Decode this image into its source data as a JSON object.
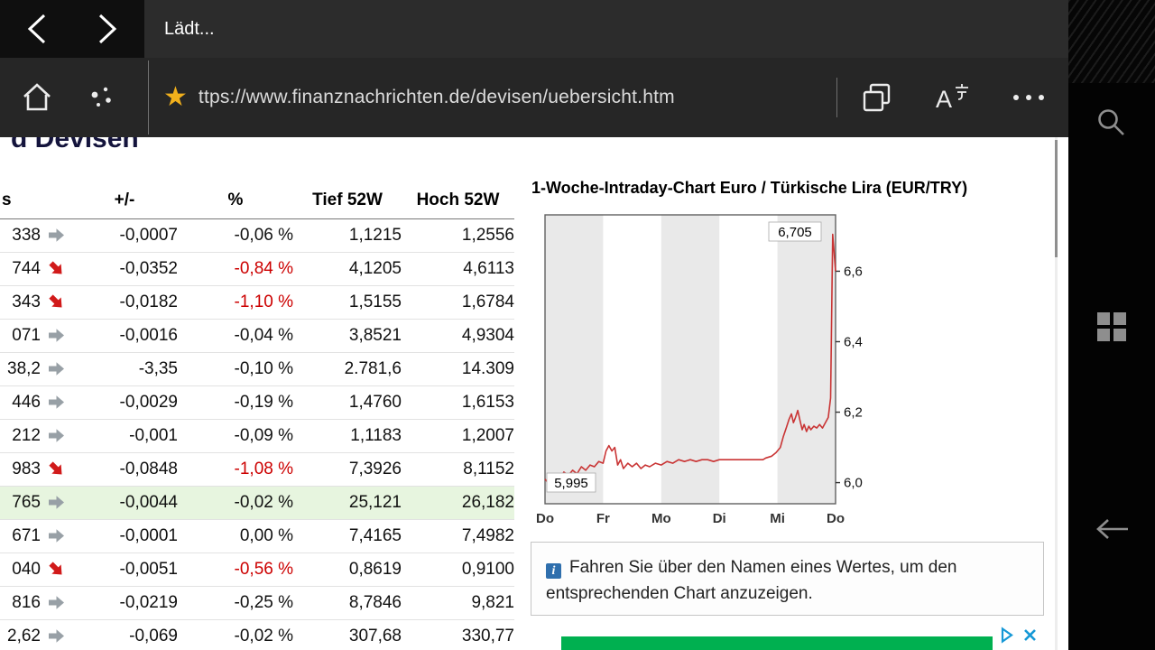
{
  "colors": {
    "neg": "#cc0000",
    "hl": "#e7f5df",
    "adgreen": "#00b050",
    "gold": "#f1b01c"
  },
  "browser": {
    "tab_title": "Lädt...",
    "url": "ttps://www.finanznachrichten.de/devisen/uebersicht.htm"
  },
  "page": {
    "heading_fragment": "d Devisen",
    "table": {
      "headers": {
        "kurs": "s",
        "chg": "+/-",
        "pct": "%",
        "low": "Tief 52W",
        "high": "Hoch 52W"
      },
      "rows": [
        {
          "kurs": "338",
          "trend": "flat",
          "chg": "-0,0007",
          "pct": "-0,06 %",
          "neg": false,
          "low": "1,1215",
          "high": "1,2556",
          "hl": false
        },
        {
          "kurs": "744",
          "trend": "down",
          "chg": "-0,0352",
          "pct": "-0,84 %",
          "neg": true,
          "low": "4,1205",
          "high": "4,6113",
          "hl": false
        },
        {
          "kurs": "343",
          "trend": "down",
          "chg": "-0,0182",
          "pct": "-1,10 %",
          "neg": true,
          "low": "1,5155",
          "high": "1,6784",
          "hl": false
        },
        {
          "kurs": "071",
          "trend": "flat",
          "chg": "-0,0016",
          "pct": "-0,04 %",
          "neg": false,
          "low": "3,8521",
          "high": "4,9304",
          "hl": false
        },
        {
          "kurs": "38,2",
          "trend": "flat",
          "chg": "-3,35",
          "pct": "-0,10 %",
          "neg": false,
          "low": "2.781,6",
          "high": "14.309",
          "hl": false
        },
        {
          "kurs": "446",
          "trend": "flat",
          "chg": "-0,0029",
          "pct": "-0,19 %",
          "neg": false,
          "low": "1,4760",
          "high": "1,6153",
          "hl": false
        },
        {
          "kurs": "212",
          "trend": "flat",
          "chg": "-0,001",
          "pct": "-0,09 %",
          "neg": false,
          "low": "1,1183",
          "high": "1,2007",
          "hl": false
        },
        {
          "kurs": "983",
          "trend": "down",
          "chg": "-0,0848",
          "pct": "-1,08 %",
          "neg": true,
          "low": "7,3926",
          "high": "8,1152",
          "hl": false
        },
        {
          "kurs": "765",
          "trend": "flat",
          "chg": "-0,0044",
          "pct": "-0,02 %",
          "neg": false,
          "low": "25,121",
          "high": "26,182",
          "hl": true
        },
        {
          "kurs": "671",
          "trend": "flat",
          "chg": "-0,0001",
          "pct": "0,00 %",
          "neg": false,
          "low": "7,4165",
          "high": "7,4982",
          "hl": false
        },
        {
          "kurs": "040",
          "trend": "down",
          "chg": "-0,0051",
          "pct": "-0,56 %",
          "neg": true,
          "low": "0,8619",
          "high": "0,9100",
          "hl": false
        },
        {
          "kurs": "816",
          "trend": "flat",
          "chg": "-0,0219",
          "pct": "-0,25 %",
          "neg": false,
          "low": "8,7846",
          "high": "9,821",
          "hl": false
        },
        {
          "kurs": "2,62",
          "trend": "flat",
          "chg": "-0,069",
          "pct": "-0,02 %",
          "neg": false,
          "low": "307,68",
          "high": "330,77",
          "hl": false
        }
      ]
    },
    "info_text": "Fahren Sie über den Namen eines Wertes, um den entsprechenden Chart anzuzeigen."
  },
  "chart_data": {
    "type": "line",
    "title": "1-Woche-Intraday-Chart Euro / Türkische Lira (EUR/TRY)",
    "x_labels": [
      "Do",
      "Fr",
      "Mo",
      "Di",
      "Mi",
      "Do"
    ],
    "y_ticks": [
      {
        "v": 6.0,
        "label": "6,0"
      },
      {
        "v": 6.2,
        "label": "6,2"
      },
      {
        "v": 6.4,
        "label": "6,4"
      },
      {
        "v": 6.6,
        "label": "6,6"
      }
    ],
    "ylim": [
      5.94,
      6.76
    ],
    "max_label": "6,705",
    "min_label": "5,995",
    "gray_bands": [
      0,
      2,
      4
    ],
    "colors": {
      "line": "#c93434",
      "band": "#e9e9e9",
      "border": "#606060"
    },
    "points": [
      [
        0,
        6.01
      ],
      [
        0.015,
        5.995
      ],
      [
        0.03,
        6.005
      ],
      [
        0.05,
        6.01
      ],
      [
        0.065,
        6.03
      ],
      [
        0.08,
        6.02
      ],
      [
        0.095,
        6.035
      ],
      [
        0.11,
        6.025
      ],
      [
        0.125,
        6.045
      ],
      [
        0.14,
        6.035
      ],
      [
        0.155,
        6.05
      ],
      [
        0.17,
        6.045
      ],
      [
        0.185,
        6.06
      ],
      [
        0.2,
        6.055
      ],
      [
        0.21,
        6.09
      ],
      [
        0.22,
        6.105
      ],
      [
        0.23,
        6.09
      ],
      [
        0.24,
        6.1
      ],
      [
        0.25,
        6.05
      ],
      [
        0.26,
        6.065
      ],
      [
        0.27,
        6.04
      ],
      [
        0.285,
        6.055
      ],
      [
        0.3,
        6.045
      ],
      [
        0.315,
        6.055
      ],
      [
        0.33,
        6.04
      ],
      [
        0.345,
        6.05
      ],
      [
        0.36,
        6.045
      ],
      [
        0.38,
        6.055
      ],
      [
        0.4,
        6.05
      ],
      [
        0.42,
        6.06
      ],
      [
        0.44,
        6.055
      ],
      [
        0.46,
        6.065
      ],
      [
        0.48,
        6.06
      ],
      [
        0.5,
        6.065
      ],
      [
        0.52,
        6.06
      ],
      [
        0.54,
        6.065
      ],
      [
        0.56,
        6.065
      ],
      [
        0.58,
        6.06
      ],
      [
        0.6,
        6.065
      ],
      [
        0.63,
        6.065
      ],
      [
        0.66,
        6.065
      ],
      [
        0.69,
        6.065
      ],
      [
        0.72,
        6.065
      ],
      [
        0.75,
        6.065
      ],
      [
        0.76,
        6.07
      ],
      [
        0.78,
        6.075
      ],
      [
        0.795,
        6.085
      ],
      [
        0.81,
        6.1
      ],
      [
        0.82,
        6.13
      ],
      [
        0.83,
        6.155
      ],
      [
        0.84,
        6.18
      ],
      [
        0.848,
        6.195
      ],
      [
        0.855,
        6.17
      ],
      [
        0.862,
        6.185
      ],
      [
        0.87,
        6.205
      ],
      [
        0.878,
        6.175
      ],
      [
        0.885,
        6.15
      ],
      [
        0.892,
        6.165
      ],
      [
        0.9,
        6.145
      ],
      [
        0.908,
        6.16
      ],
      [
        0.915,
        6.15
      ],
      [
        0.925,
        6.16
      ],
      [
        0.935,
        6.155
      ],
      [
        0.945,
        6.165
      ],
      [
        0.955,
        6.155
      ],
      [
        0.965,
        6.17
      ],
      [
        0.975,
        6.185
      ],
      [
        0.983,
        6.24
      ],
      [
        0.99,
        6.705
      ],
      [
        1,
        6.6
      ]
    ]
  }
}
